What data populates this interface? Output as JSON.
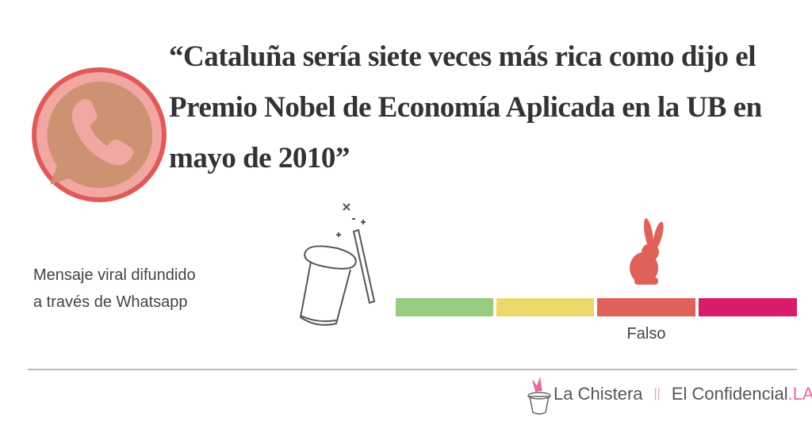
{
  "quote": {
    "lines": [
      "“Cataluña sería siete veces más rica como dijo el",
      "Premio Nobel de Economía Aplicada en la UB en",
      "mayo de 2010”"
    ]
  },
  "source": {
    "lines": [
      "Mensaje viral difundido",
      "a través de Whatsapp"
    ]
  },
  "verdict": {
    "label": "Falso"
  },
  "footer": {
    "brand": "La Chistera",
    "separator": "||",
    "publisher": "El Confidencial",
    "publisher_suffix": ".LAB"
  }
}
